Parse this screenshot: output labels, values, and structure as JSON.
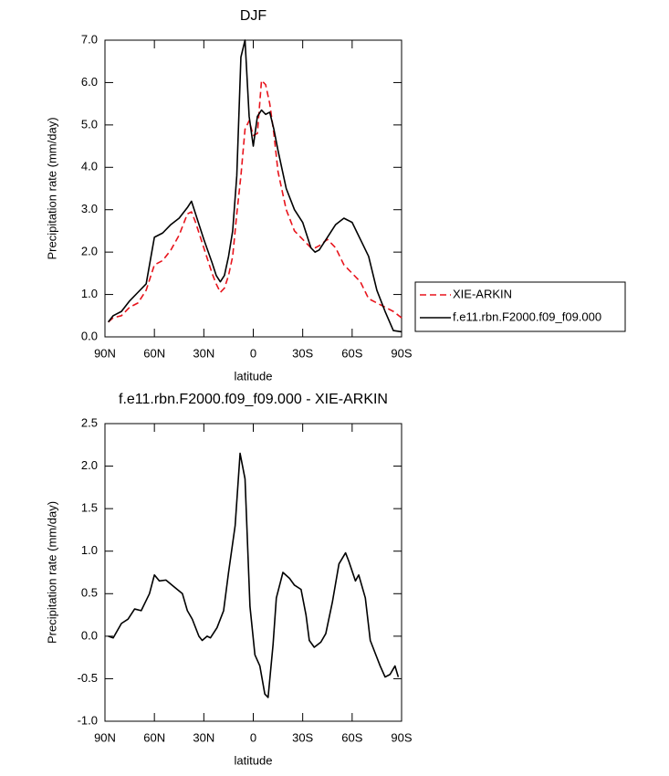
{
  "chart_data": [
    {
      "type": "line",
      "title": "DJF",
      "x_label": "latitude",
      "y_label": "Precipitation rate (mm/day)",
      "x": [
        88,
        85,
        80,
        75,
        70,
        65,
        62.5,
        60,
        55,
        50,
        45,
        40,
        37.5,
        35,
        30,
        25,
        22.5,
        20,
        17.5,
        15,
        12.5,
        10,
        7.5,
        5,
        2.5,
        0,
        -2.5,
        -5,
        -7.5,
        -10,
        -12.5,
        -15,
        -20,
        -25,
        -30,
        -35,
        -37.5,
        -40,
        -45,
        -50,
        -55,
        -60,
        -65,
        -70,
        -75,
        -80,
        -85,
        -90
      ],
      "series": [
        {
          "name": "XIE-ARKIN",
          "color": "#e8141c",
          "line_style": "dashed",
          "values": [
            0.35,
            0.45,
            0.5,
            0.7,
            0.8,
            1.1,
            1.4,
            1.7,
            1.8,
            2.05,
            2.4,
            2.9,
            2.95,
            2.7,
            2.1,
            1.5,
            1.25,
            1.05,
            1.15,
            1.45,
            1.9,
            2.9,
            3.8,
            4.9,
            5.1,
            4.75,
            4.8,
            6.05,
            5.95,
            5.5,
            4.8,
            3.9,
            3.0,
            2.5,
            2.3,
            2.1,
            2.1,
            2.15,
            2.3,
            2.1,
            1.7,
            1.5,
            1.3,
            0.9,
            0.8,
            0.7,
            0.6,
            0.45
          ]
        },
        {
          "name": "f.e11.rbn.F2000.f09_f09.000",
          "color": "#000000",
          "line_style": "solid",
          "values": [
            0.35,
            0.5,
            0.6,
            0.85,
            1.05,
            1.25,
            1.8,
            2.35,
            2.45,
            2.65,
            2.8,
            3.05,
            3.2,
            2.9,
            2.3,
            1.75,
            1.45,
            1.3,
            1.45,
            1.9,
            2.5,
            3.8,
            6.6,
            7.0,
            5.2,
            4.5,
            5.2,
            5.35,
            5.25,
            5.3,
            4.9,
            4.4,
            3.5,
            3.0,
            2.7,
            2.1,
            2.0,
            2.05,
            2.35,
            2.65,
            2.8,
            2.7,
            2.3,
            1.9,
            1.1,
            0.6,
            0.15,
            0.12
          ]
        }
      ],
      "xlim": [
        90,
        -90
      ],
      "xticks": [
        {
          "value": 90,
          "label": "90N"
        },
        {
          "value": 60,
          "label": "60N"
        },
        {
          "value": 30,
          "label": "30N"
        },
        0,
        {
          "value": -30,
          "label": "30S"
        },
        {
          "value": -60,
          "label": "60S"
        },
        {
          "value": -90,
          "label": "90S"
        }
      ],
      "ylim": [
        0,
        7
      ],
      "yticks": [
        {
          "value": 0,
          "label": "0.0"
        },
        {
          "value": 1,
          "label": "1.0"
        },
        {
          "value": 2,
          "label": "2.0"
        },
        {
          "value": 3,
          "label": "3.0"
        },
        {
          "value": 4,
          "label": "4.0"
        },
        {
          "value": 5,
          "label": "5.0"
        },
        {
          "value": 6,
          "label": "6.0"
        },
        {
          "value": 7,
          "label": "7.0"
        }
      ],
      "legend": "right"
    },
    {
      "type": "line",
      "title": "f.e11.rbn.F2000.f09_f09.000 - XIE-ARKIN",
      "x_label": "latitude",
      "y_label": "Precipitation rate (mm/day)",
      "x": [
        88,
        85,
        80,
        76,
        72,
        68,
        63,
        60,
        57,
        53,
        48,
        43,
        40,
        37,
        33,
        31,
        28,
        26,
        22,
        18,
        15,
        11,
        8,
        5,
        2,
        -1,
        -4,
        -7,
        -9,
        -12,
        -14,
        -18,
        -22,
        -25,
        -29,
        -32,
        -34,
        -37,
        -41,
        -44,
        -48,
        -52,
        -56,
        -58,
        -62,
        -64,
        -68,
        -71,
        -74,
        -77,
        -80,
        -83,
        -86,
        -88
      ],
      "values": [
        0.0,
        -0.02,
        0.15,
        0.2,
        0.32,
        0.3,
        0.5,
        0.72,
        0.65,
        0.66,
        0.58,
        0.5,
        0.3,
        0.2,
        0.0,
        -0.05,
        0.0,
        -0.02,
        0.1,
        0.3,
        0.75,
        1.3,
        2.15,
        1.85,
        0.35,
        -0.22,
        -0.35,
        -0.68,
        -0.72,
        -0.1,
        0.45,
        0.75,
        0.68,
        0.6,
        0.55,
        0.25,
        -0.05,
        -0.13,
        -0.07,
        0.03,
        0.4,
        0.85,
        0.98,
        0.88,
        0.65,
        0.72,
        0.45,
        -0.05,
        -0.2,
        -0.35,
        -0.48,
        -0.45,
        -0.35,
        -0.48
      ],
      "color": "#000000",
      "xlim": [
        90,
        -90
      ],
      "xticks": [
        {
          "value": 90,
          "label": "90N"
        },
        {
          "value": 60,
          "label": "60N"
        },
        {
          "value": 30,
          "label": "30N"
        },
        0,
        {
          "value": -30,
          "label": "30S"
        },
        {
          "value": -60,
          "label": "60S"
        },
        {
          "value": -90,
          "label": "90S"
        }
      ],
      "ylim": [
        -1,
        2.5
      ],
      "yticks": [
        {
          "value": -1,
          "label": "-1.0"
        },
        {
          "value": -0.5,
          "label": "-0.5"
        },
        {
          "value": 0,
          "label": "0.0"
        },
        {
          "value": 0.5,
          "label": "0.5"
        },
        {
          "value": 1,
          "label": "1.0"
        },
        {
          "value": 1.5,
          "label": "1.5"
        },
        {
          "value": 2,
          "label": "2.0"
        },
        {
          "value": 2.5,
          "label": "2.5"
        }
      ]
    }
  ]
}
